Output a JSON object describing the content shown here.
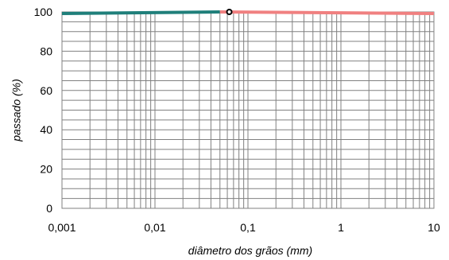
{
  "chart_data": {
    "type": "line",
    "xlabel": "diâmetro dos grãos  (mm)",
    "ylabel": "passado  (%)",
    "x_scale": "log",
    "xlim": [
      0.001,
      10
    ],
    "ylim": [
      0,
      100
    ],
    "x_ticks": [
      "0,001",
      "0,01",
      "0,1",
      "1",
      "10"
    ],
    "y_ticks": [
      "0",
      "20",
      "40",
      "60",
      "80",
      "100"
    ],
    "grid": true,
    "y_minor_step": 5,
    "series": [
      {
        "color": "#1f7f7a",
        "x": [
          0.001,
          0.05
        ],
        "y": [
          99.2,
          100
        ]
      },
      {
        "color": "#f08080",
        "x": [
          0.05,
          10
        ],
        "y": [
          100,
          99.2
        ]
      }
    ],
    "points": [
      {
        "x": 0.063,
        "y": 100,
        "marker": "open-circle",
        "color": "#000000"
      }
    ]
  }
}
